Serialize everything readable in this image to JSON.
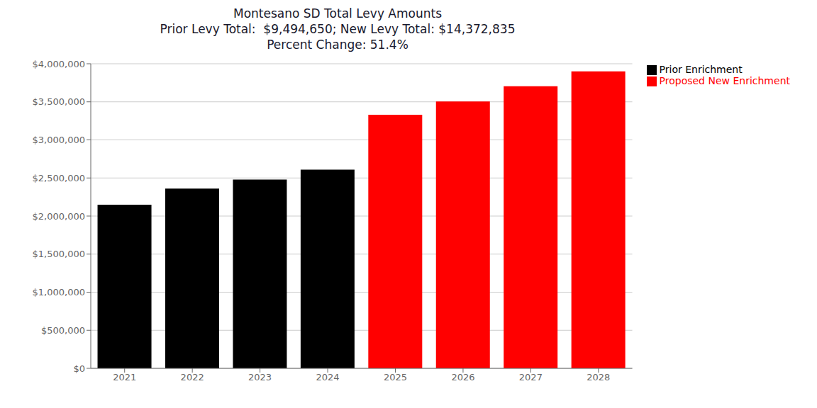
{
  "chart_data": {
    "type": "bar",
    "title": "Montesano SD Total Levy Amounts\nPrior Levy Total:  $9,494,650; New Levy Total: $14,372,835\nPercent Change: 51.4%",
    "categories": [
      "2021",
      "2022",
      "2023",
      "2024",
      "2025",
      "2026",
      "2027",
      "2028"
    ],
    "series": [
      {
        "name": "Prior Enrichment",
        "color": "#000000",
        "values": [
          2150000,
          2360000,
          2480000,
          2610000,
          null,
          null,
          null,
          null
        ]
      },
      {
        "name": "Proposed New Enrichment",
        "color": "#ff0000",
        "values": [
          null,
          null,
          null,
          null,
          3330000,
          3505000,
          3705000,
          3900000
        ]
      }
    ],
    "ylim": [
      0,
      4000000
    ],
    "yticks": [
      {
        "value": 0,
        "label": "$0"
      },
      {
        "value": 500000,
        "label": "$500,000"
      },
      {
        "value": 1000000,
        "label": "$1,000,000"
      },
      {
        "value": 1500000,
        "label": "$1,500,000"
      },
      {
        "value": 2000000,
        "label": "$2,000,000"
      },
      {
        "value": 2500000,
        "label": "$2,500,000"
      },
      {
        "value": 3000000,
        "label": "$3,000,000"
      },
      {
        "value": 3500000,
        "label": "$3,500,000"
      },
      {
        "value": 4000000,
        "label": "$4,000,000"
      }
    ],
    "grid": true,
    "legend": "right"
  }
}
